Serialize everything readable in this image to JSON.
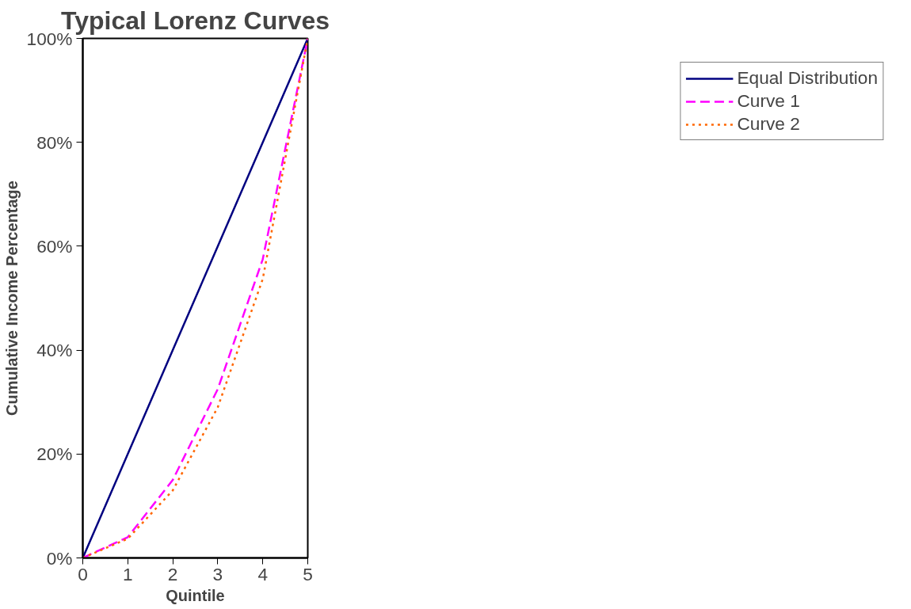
{
  "chart_data": {
    "type": "line",
    "title": "Typical Lorenz Curves",
    "xlabel": "Quintile",
    "ylabel": "Cumulative Income Percentage",
    "x": [
      0,
      1,
      2,
      3,
      4,
      5
    ],
    "series": [
      {
        "name": "Equal Distribution",
        "color": "#000080",
        "line_style": "solid",
        "values": [
          0,
          20,
          40,
          60,
          80,
          100
        ]
      },
      {
        "name": "Curve 1",
        "color": "#ff00ff",
        "line_style": "dashed",
        "values": [
          0,
          4,
          15,
          32.5,
          57.5,
          100
        ]
      },
      {
        "name": "Curve 2",
        "color": "#ff6600",
        "line_style": "dotted",
        "values": [
          0,
          3.7,
          13,
          29,
          53.7,
          100
        ]
      }
    ],
    "xlim": [
      0,
      5
    ],
    "xticks": [
      0,
      1,
      2,
      3,
      4,
      5
    ],
    "ylim": [
      0,
      100
    ],
    "yticks": [
      {
        "value": 0,
        "label": "0%"
      },
      {
        "value": 20,
        "label": "20%"
      },
      {
        "value": 40,
        "label": "40%"
      },
      {
        "value": 60,
        "label": "60%"
      },
      {
        "value": 80,
        "label": "80%"
      },
      {
        "value": 100,
        "label": "100%"
      }
    ],
    "grid": false,
    "legend": "right",
    "marker": "none"
  }
}
